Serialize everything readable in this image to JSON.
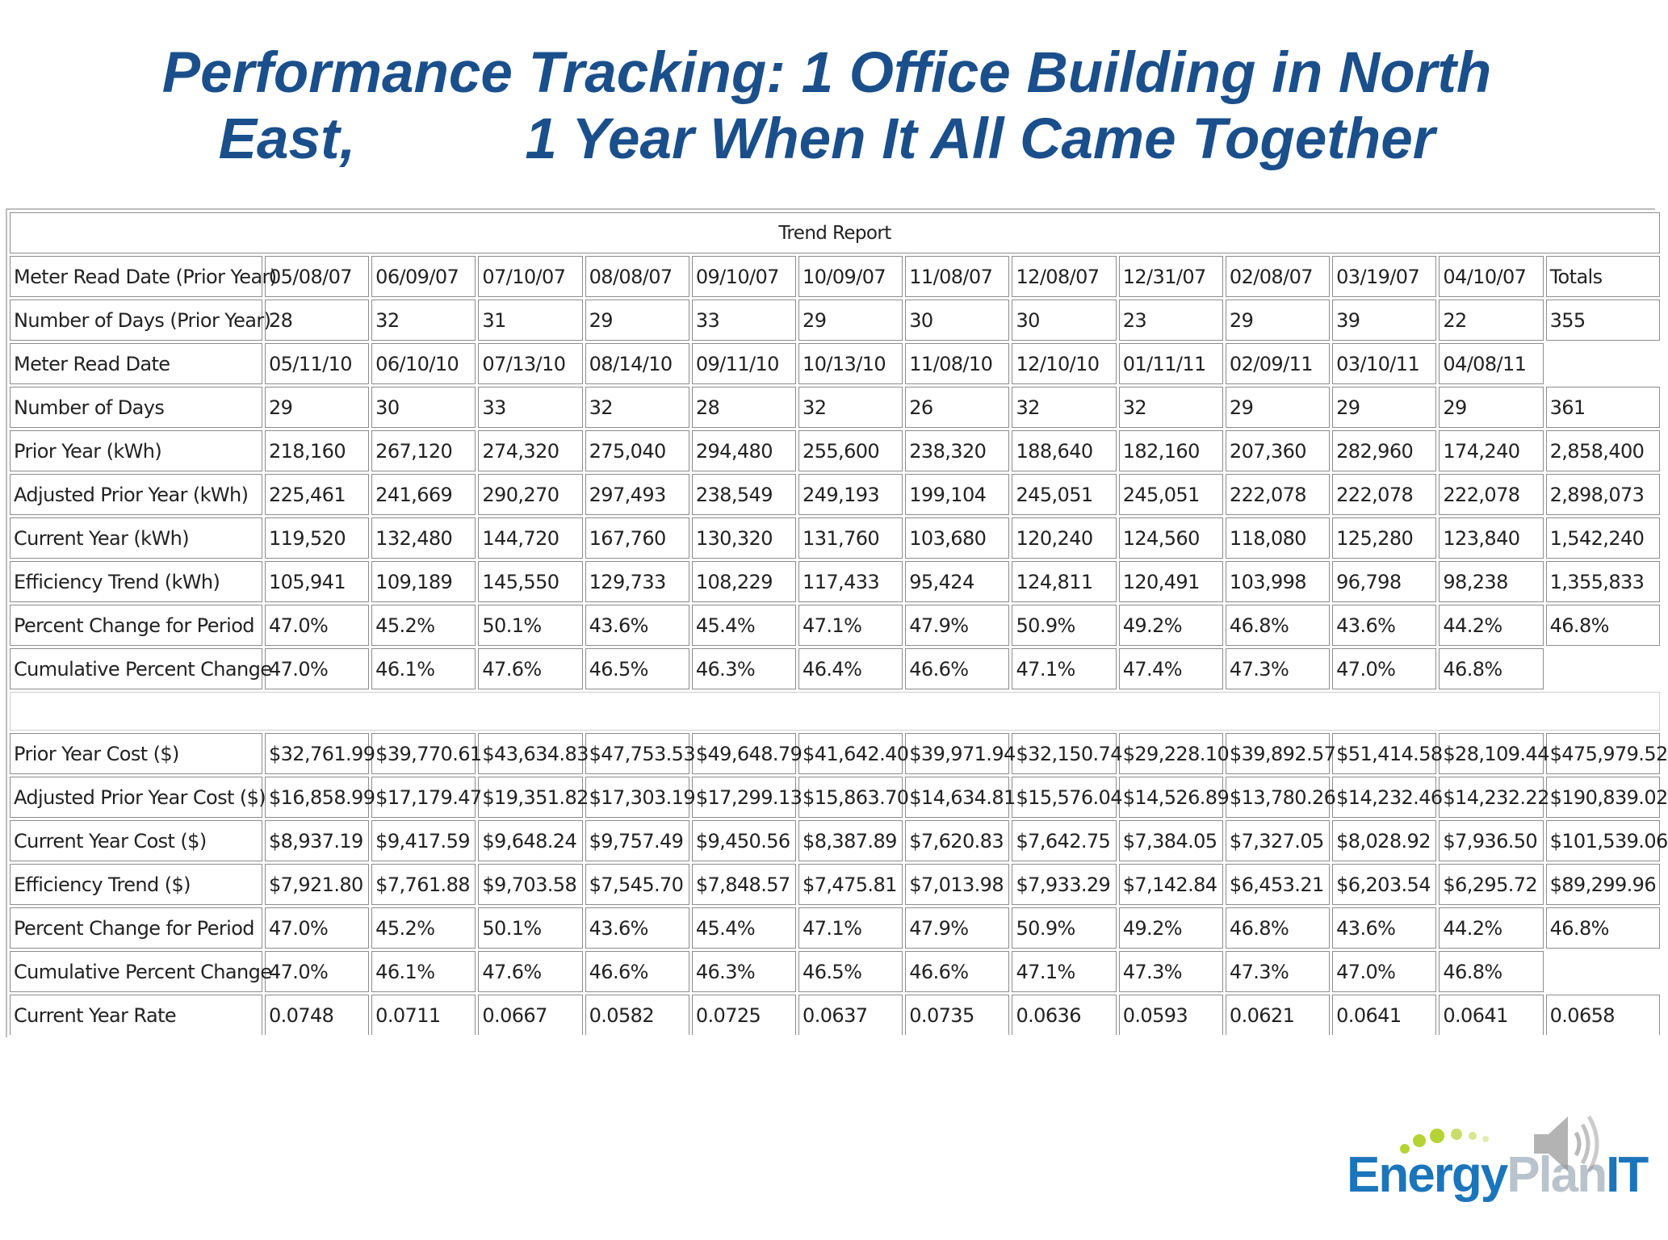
{
  "slide": {
    "title_line1": "Performance Tracking: 1 Office Building in North",
    "title_line2_a": "East,",
    "title_line2_b": "1 Year When It All Came Together"
  },
  "table": {
    "caption": "Trend Report",
    "header": {
      "label": "Meter Read Date (Prior Year)",
      "dates": [
        "05/08/07",
        "06/09/07",
        "07/10/07",
        "08/08/07",
        "09/10/07",
        "10/09/07",
        "11/08/07",
        "12/08/07",
        "12/31/07",
        "02/08/07",
        "03/19/07",
        "04/10/07"
      ],
      "total": "Totals"
    },
    "kwh_rows": [
      {
        "label": "Number of Days (Prior Year)",
        "values": [
          "28",
          "32",
          "31",
          "29",
          "33",
          "29",
          "30",
          "30",
          "23",
          "29",
          "39",
          "22"
        ],
        "total": "355"
      },
      {
        "label": "Meter Read Date",
        "values": [
          "05/11/10",
          "06/10/10",
          "07/13/10",
          "08/14/10",
          "09/11/10",
          "10/13/10",
          "11/08/10",
          "12/10/10",
          "01/11/11",
          "02/09/11",
          "03/10/11",
          "04/08/11"
        ],
        "total": ""
      },
      {
        "label": "Number of Days",
        "values": [
          "29",
          "30",
          "33",
          "32",
          "28",
          "32",
          "26",
          "32",
          "32",
          "29",
          "29",
          "29"
        ],
        "total": "361"
      },
      {
        "label": "Prior Year (kWh)",
        "values": [
          "218,160",
          "267,120",
          "274,320",
          "275,040",
          "294,480",
          "255,600",
          "238,320",
          "188,640",
          "182,160",
          "207,360",
          "282,960",
          "174,240"
        ],
        "total": "2,858,400"
      },
      {
        "label": "Adjusted Prior Year (kWh)",
        "values": [
          "225,461",
          "241,669",
          "290,270",
          "297,493",
          "238,549",
          "249,193",
          "199,104",
          "245,051",
          "245,051",
          "222,078",
          "222,078",
          "222,078"
        ],
        "total": "2,898,073"
      },
      {
        "label": "Current Year (kWh)",
        "values": [
          "119,520",
          "132,480",
          "144,720",
          "167,760",
          "130,320",
          "131,760",
          "103,680",
          "120,240",
          "124,560",
          "118,080",
          "125,280",
          "123,840"
        ],
        "total": "1,542,240"
      },
      {
        "label": "Efficiency Trend (kWh)",
        "values": [
          "105,941",
          "109,189",
          "145,550",
          "129,733",
          "108,229",
          "117,433",
          "95,424",
          "124,811",
          "120,491",
          "103,998",
          "96,798",
          "98,238"
        ],
        "total": "1,355,833"
      },
      {
        "label": "Percent Change for Period",
        "values": [
          "47.0%",
          "45.2%",
          "50.1%",
          "43.6%",
          "45.4%",
          "47.1%",
          "47.9%",
          "50.9%",
          "49.2%",
          "46.8%",
          "43.6%",
          "44.2%"
        ],
        "total": "46.8%"
      },
      {
        "label": "Cumulative Percent Change",
        "values": [
          "47.0%",
          "46.1%",
          "47.6%",
          "46.5%",
          "46.3%",
          "46.4%",
          "46.6%",
          "47.1%",
          "47.4%",
          "47.3%",
          "47.0%",
          "46.8%"
        ],
        "total": ""
      }
    ],
    "cost_rows": [
      {
        "label": "Prior Year Cost ($)",
        "values": [
          "$32,761.99",
          "$39,770.61",
          "$43,634.83",
          "$47,753.53",
          "$49,648.79",
          "$41,642.40",
          "$39,971.94",
          "$32,150.74",
          "$29,228.10",
          "$39,892.57",
          "$51,414.58",
          "$28,109.44"
        ],
        "total": "$475,979.52"
      },
      {
        "label": "Adjusted Prior Year Cost ($)",
        "values": [
          "$16,858.99",
          "$17,179.47",
          "$19,351.82",
          "$17,303.19",
          "$17,299.13",
          "$15,863.70",
          "$14,634.81",
          "$15,576.04",
          "$14,526.89",
          "$13,780.26",
          "$14,232.46",
          "$14,232.22"
        ],
        "total": "$190,839.02"
      },
      {
        "label": "Current Year Cost ($)",
        "values": [
          "$8,937.19",
          "$9,417.59",
          "$9,648.24",
          "$9,757.49",
          "$9,450.56",
          "$8,387.89",
          "$7,620.83",
          "$7,642.75",
          "$7,384.05",
          "$7,327.05",
          "$8,028.92",
          "$7,936.50"
        ],
        "total": "$101,539.06"
      },
      {
        "label": "Efficiency Trend ($)",
        "values": [
          "$7,921.80",
          "$7,761.88",
          "$9,703.58",
          "$7,545.70",
          "$7,848.57",
          "$7,475.81",
          "$7,013.98",
          "$7,933.29",
          "$7,142.84",
          "$6,453.21",
          "$6,203.54",
          "$6,295.72"
        ],
        "total": "$89,299.96"
      },
      {
        "label": "Percent Change for Period",
        "values": [
          "47.0%",
          "45.2%",
          "50.1%",
          "43.6%",
          "45.4%",
          "47.1%",
          "47.9%",
          "50.9%",
          "49.2%",
          "46.8%",
          "43.6%",
          "44.2%"
        ],
        "total": "46.8%"
      },
      {
        "label": "Cumulative Percent Change",
        "values": [
          "47.0%",
          "46.1%",
          "47.6%",
          "46.6%",
          "46.3%",
          "46.5%",
          "46.6%",
          "47.1%",
          "47.3%",
          "47.3%",
          "47.0%",
          "46.8%"
        ],
        "total": ""
      },
      {
        "label": "Current Year Rate",
        "values": [
          "0.0748",
          "0.0711",
          "0.0667",
          "0.0582",
          "0.0725",
          "0.0637",
          "0.0735",
          "0.0636",
          "0.0593",
          "0.0621",
          "0.0641",
          "0.0641"
        ],
        "total": "0.0658"
      }
    ]
  },
  "logo": {
    "text_energy": "Energy",
    "text_plan": "Plan",
    "text_it": "IT",
    "brand_blue": "#1b75bb",
    "dot_green": "#b5d334"
  },
  "icons": {
    "speaker": "speaker-icon"
  }
}
